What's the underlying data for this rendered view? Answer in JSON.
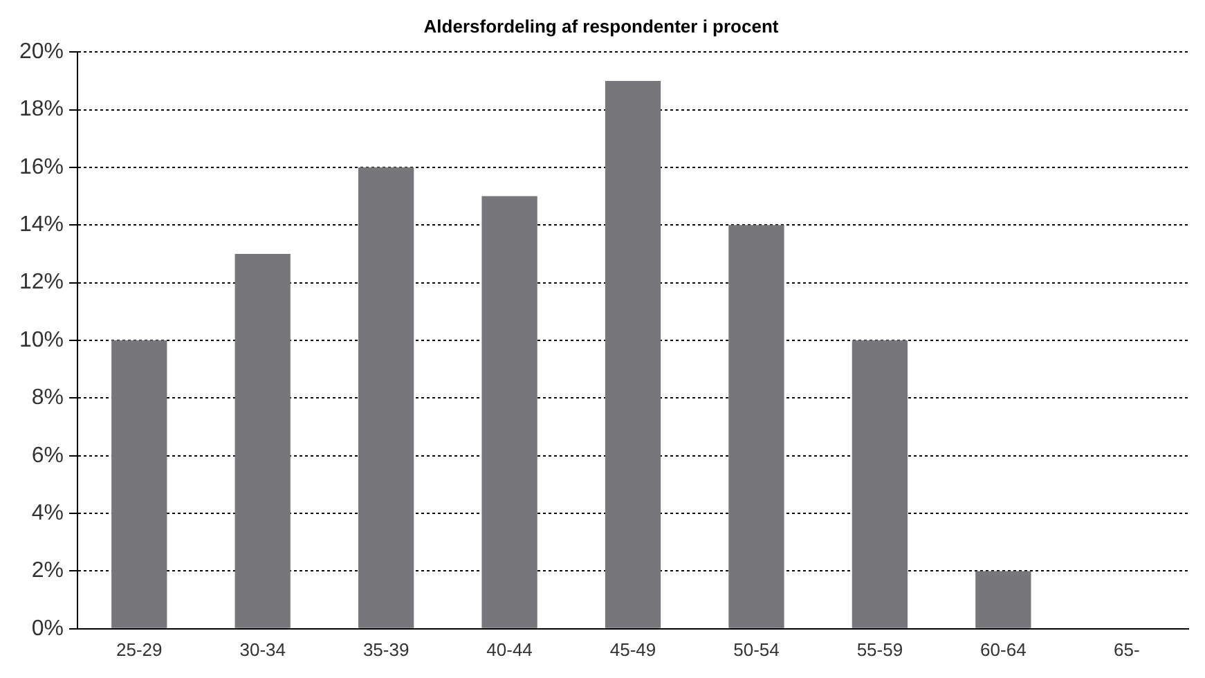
{
  "chart_data": {
    "type": "bar",
    "title": "Aldersfordeling af respondenter i procent",
    "categories": [
      "25-29",
      "30-34",
      "35-39",
      "40-44",
      "45-49",
      "50-54",
      "55-59",
      "60-64",
      "65-"
    ],
    "values": [
      10,
      13,
      16,
      15,
      19,
      14,
      10,
      2,
      0
    ],
    "color": "#77777b",
    "ylim": [
      0,
      20
    ],
    "yticks": [
      {
        "value": 0,
        "label": "0%"
      },
      {
        "value": 2,
        "label": "2%"
      },
      {
        "value": 4,
        "label": "4%"
      },
      {
        "value": 6,
        "label": "6%"
      },
      {
        "value": 8,
        "label": "8%"
      },
      {
        "value": 10,
        "label": "10%"
      },
      {
        "value": 12,
        "label": "12%"
      },
      {
        "value": 14,
        "label": "14%"
      },
      {
        "value": 16,
        "label": "16%"
      },
      {
        "value": 18,
        "label": "18%"
      },
      {
        "value": 20,
        "label": "20%"
      }
    ],
    "grid": "y",
    "legend": false
  }
}
